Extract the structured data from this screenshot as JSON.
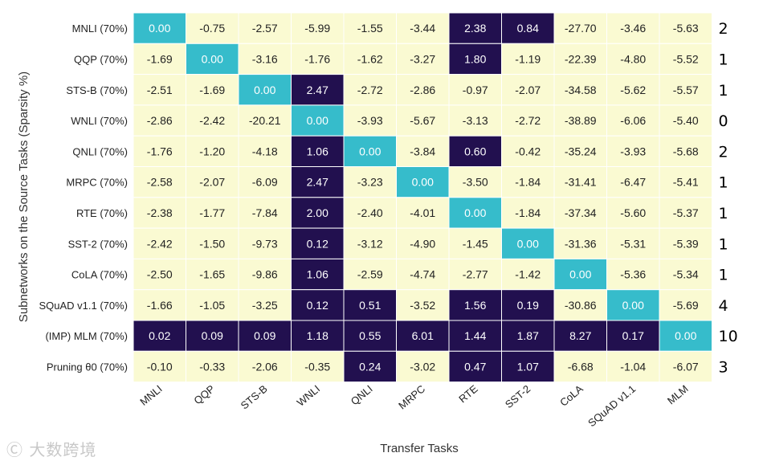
{
  "chart_data": {
    "type": "heatmap",
    "title": "",
    "xlabel": "Transfer Tasks",
    "ylabel": "Subnetworks on the Source Tasks (Sparsity %)",
    "columns": [
      "MNLI",
      "QQP",
      "STS-B",
      "WNLI",
      "QNLI",
      "MRPC",
      "RTE",
      "SST-2",
      "CoLA",
      "SQuAD v1.1",
      "MLM"
    ],
    "rows": [
      "MNLI (70%)",
      "QQP (70%)",
      "STS-B (70%)",
      "WNLI (70%)",
      "QNLI (70%)",
      "MRPC (70%)",
      "RTE (70%)",
      "SST-2 (70%)",
      "CoLA (70%)",
      "SQuAD v1.1 (70%)",
      "(IMP) MLM (70%)",
      "Pruning θ0 (70%)"
    ],
    "values": [
      [
        0.0,
        -0.75,
        -2.57,
        -5.99,
        -1.55,
        -3.44,
        2.38,
        0.84,
        -27.7,
        -3.46,
        -5.63
      ],
      [
        -1.69,
        0.0,
        -3.16,
        -1.76,
        -1.62,
        -3.27,
        1.8,
        -1.19,
        -22.39,
        -4.8,
        -5.52
      ],
      [
        -2.51,
        -1.69,
        0.0,
        2.47,
        -2.72,
        -2.86,
        -0.97,
        -2.07,
        -34.58,
        -5.62,
        -5.57
      ],
      [
        -2.86,
        -2.42,
        -20.21,
        0.0,
        -3.93,
        -5.67,
        -3.13,
        -2.72,
        -38.89,
        -6.06,
        -5.4
      ],
      [
        -1.76,
        -1.2,
        -4.18,
        1.06,
        0.0,
        -3.84,
        0.6,
        -0.42,
        -35.24,
        -3.93,
        -5.68
      ],
      [
        -2.58,
        -2.07,
        -6.09,
        2.47,
        -3.23,
        0.0,
        -3.5,
        -1.84,
        -31.41,
        -6.47,
        -5.41
      ],
      [
        -2.38,
        -1.77,
        -7.84,
        2.0,
        -2.4,
        -4.01,
        0.0,
        -1.84,
        -37.34,
        -5.6,
        -5.37
      ],
      [
        -2.42,
        -1.5,
        -9.73,
        0.12,
        -3.12,
        -4.9,
        -1.45,
        0.0,
        -31.36,
        -5.31,
        -5.39
      ],
      [
        -2.5,
        -1.65,
        -9.86,
        1.06,
        -2.59,
        -4.74,
        -2.77,
        -1.42,
        0.0,
        -5.36,
        -5.34
      ],
      [
        -1.66,
        -1.05,
        -3.25,
        0.12,
        0.51,
        -3.52,
        1.56,
        0.19,
        -30.86,
        0.0,
        -5.69
      ],
      [
        0.02,
        0.09,
        0.09,
        1.18,
        0.55,
        6.01,
        1.44,
        1.87,
        8.27,
        0.17,
        0.0
      ],
      [
        -0.1,
        -0.33,
        -2.06,
        -0.35,
        0.24,
        -3.02,
        0.47,
        1.07,
        -6.68,
        -1.04,
        -6.07
      ]
    ],
    "row_counts": [
      2,
      1,
      1,
      0,
      2,
      1,
      1,
      1,
      1,
      4,
      10,
      3
    ],
    "colors": {
      "negative": "#fafad2",
      "positive": "#22104f",
      "diagonal": "#36bccb",
      "text_dark": "#222222",
      "text_light": "#ffffff"
    }
  },
  "watermark": "Ⓒ 大数跨境"
}
